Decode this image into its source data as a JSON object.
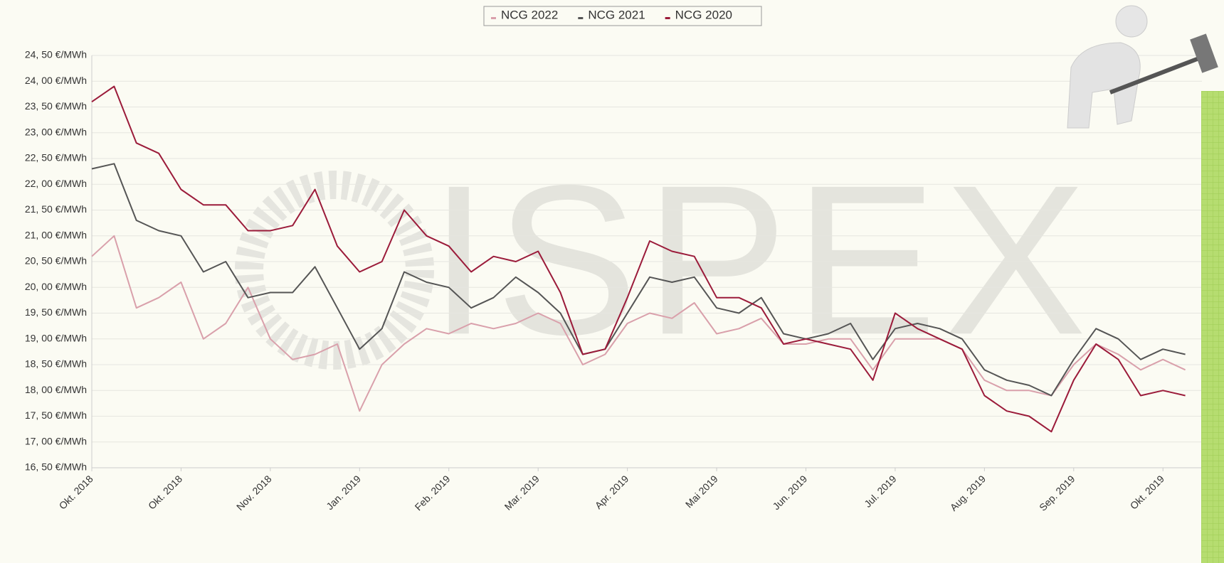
{
  "chart_data": {
    "type": "line",
    "watermark": "ISPEX",
    "categories": [
      "Okt. 2018",
      null,
      null,
      null,
      "Okt. 2018",
      null,
      null,
      null,
      "Nov. 2018",
      null,
      null,
      null,
      "Jan. 2019",
      null,
      null,
      null,
      "Feb. 2019",
      null,
      null,
      null,
      "Mar. 2019",
      null,
      null,
      null,
      "Apr. 2019",
      null,
      null,
      null,
      "Mai 2019",
      null,
      null,
      null,
      "Jun. 2019",
      null,
      null,
      null,
      "Jul. 2019",
      null,
      null,
      null,
      "Aug. 2019",
      null,
      null,
      null,
      "Sep. 2019",
      null,
      null,
      null,
      "Okt. 2019",
      null
    ],
    "series": [
      {
        "name": "NCG 2022",
        "color": "#d9a0ab",
        "values": [
          20.6,
          21.0,
          19.6,
          19.8,
          20.1,
          19.0,
          19.3,
          20.0,
          19.0,
          18.6,
          18.7,
          18.9,
          17.6,
          18.5,
          18.9,
          19.2,
          19.1,
          19.3,
          19.2,
          19.3,
          19.5,
          19.3,
          18.5,
          18.7,
          19.3,
          19.5,
          19.4,
          19.7,
          19.1,
          19.2,
          19.4,
          18.9,
          18.9,
          19.0,
          19.0,
          18.4,
          19.0,
          19.0,
          19.0,
          18.8,
          18.2,
          18.0,
          18.0,
          17.9,
          18.5,
          18.9,
          18.7,
          18.4,
          18.6,
          18.4
        ]
      },
      {
        "name": "NCG 2021",
        "color": "#555555",
        "values": [
          22.3,
          22.4,
          21.3,
          21.1,
          21.0,
          20.3,
          20.5,
          19.8,
          19.9,
          19.9,
          20.4,
          19.6,
          18.8,
          19.2,
          20.3,
          20.1,
          20.0,
          19.6,
          19.8,
          20.2,
          19.9,
          19.5,
          18.7,
          18.8,
          19.5,
          20.2,
          20.1,
          20.2,
          19.6,
          19.5,
          19.8,
          19.1,
          19.0,
          19.1,
          19.3,
          18.6,
          19.2,
          19.3,
          19.2,
          19.0,
          18.4,
          18.2,
          18.1,
          17.9,
          18.6,
          19.2,
          19.0,
          18.6,
          18.8,
          18.7
        ]
      },
      {
        "name": "NCG 2020",
        "color": "#9b1b3a",
        "values": [
          23.6,
          23.9,
          22.8,
          22.6,
          21.9,
          21.6,
          21.6,
          21.1,
          21.1,
          21.2,
          21.9,
          20.8,
          20.3,
          20.5,
          21.5,
          21.0,
          20.8,
          20.3,
          20.6,
          20.5,
          20.7,
          19.9,
          18.7,
          18.8,
          19.8,
          20.9,
          20.7,
          20.6,
          19.8,
          19.8,
          19.6,
          18.9,
          19.0,
          18.9,
          18.8,
          18.2,
          19.5,
          19.2,
          19.0,
          18.8,
          17.9,
          17.6,
          17.5,
          17.2,
          18.2,
          18.9,
          18.6,
          17.9,
          18.0,
          17.9
        ]
      }
    ],
    "ylim": [
      16.5,
      24.5
    ],
    "yticks": [
      {
        "value": 16.5,
        "label": "16, 50 €/MWh"
      },
      {
        "value": 17,
        "label": "17, 00 €/MWh"
      },
      {
        "value": 17.5,
        "label": "17, 50 €/MWh"
      },
      {
        "value": 18,
        "label": "18, 00 €/MWh"
      },
      {
        "value": 18.5,
        "label": "18, 50 €/MWh"
      },
      {
        "value": 19,
        "label": "19, 00 €/MWh"
      },
      {
        "value": 19.5,
        "label": "19, 50 €/MWh"
      },
      {
        "value": 20,
        "label": "20, 00 €/MWh"
      },
      {
        "value": 20.5,
        "label": "20, 50 €/MWh"
      },
      {
        "value": 21,
        "label": "21, 00 €/MWh"
      },
      {
        "value": 21.5,
        "label": "21, 50 €/MWh"
      },
      {
        "value": 22,
        "label": "22, 00 €/MWh"
      },
      {
        "value": 22.5,
        "label": "22, 50 €/MWh"
      },
      {
        "value": 23,
        "label": "23, 00 €/MWh"
      },
      {
        "value": 23.5,
        "label": "23, 50 €/MWh"
      },
      {
        "value": 24,
        "label": "24, 00 €/MWh"
      },
      {
        "value": 24.5,
        "label": "24, 50 €/MWh"
      }
    ],
    "grid": true
  }
}
